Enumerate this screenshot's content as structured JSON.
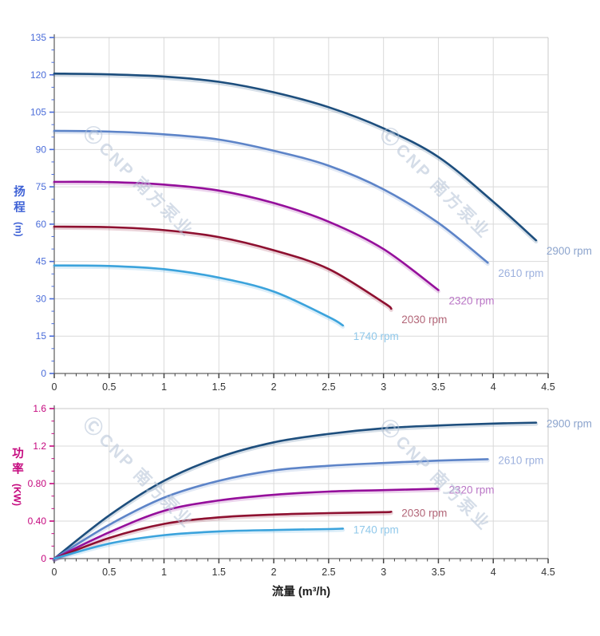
{
  "watermark": {
    "logo": "Ⓒ",
    "brand": "CNP 南方泵业"
  },
  "x_axis_title": "流量 (m³/h)",
  "colors": {
    "grid": "#dadada",
    "border": "#c9c9c9",
    "spine": "#666666",
    "x_tick": "#444444",
    "x_text": "#333333",
    "head_axis": "#4a6cd9",
    "power_axis": "#c5087e",
    "watermark": "#b3c2d6"
  },
  "chart_data": [
    {
      "type": "line",
      "title": "",
      "xlabel": "流量 (m³/h)",
      "ylabel": "扬程 (m)",
      "y_title": {
        "text": "扬程",
        "unit": "(m)"
      },
      "xlim": [
        0,
        4.5
      ],
      "ylim": [
        0,
        135
      ],
      "grid": true,
      "axis_color": "#4a6cd9",
      "x_ticks": {
        "values": [
          0,
          0.5,
          1,
          1.5,
          2,
          2.5,
          3,
          3.5,
          4,
          4.5
        ],
        "labels": [
          "0",
          "0.5",
          "1",
          "1.5",
          "2",
          "2.5",
          "3",
          "3.5",
          "4",
          "4.5"
        ],
        "minor_divisions": 5
      },
      "y_ticks": {
        "values": [
          0,
          15,
          30,
          45,
          60,
          75,
          90,
          105,
          120,
          135
        ],
        "labels": [
          "0",
          "15",
          "30",
          "45",
          "60",
          "75",
          "90",
          "105",
          "120",
          "135"
        ],
        "minor_divisions": 3
      },
      "series": [
        {
          "name": "2900 rpm",
          "color": "#1d4e7d",
          "label_color": "#8ca4cd",
          "x": [
            0,
            0.5,
            1,
            1.5,
            2,
            2.5,
            3,
            3.5,
            4,
            4.39
          ],
          "y": [
            120.5,
            120.2,
            119.3,
            117.2,
            113,
            107,
            98.5,
            87,
            69,
            53.5
          ]
        },
        {
          "name": "2610 rpm",
          "color": "#5d84c8",
          "label_color": "#9db1de",
          "x": [
            0,
            0.5,
            1,
            1.5,
            2,
            2.5,
            3,
            3.5,
            3.95
          ],
          "y": [
            97.5,
            97.2,
            96.1,
            94,
            89.5,
            83.5,
            74,
            60.5,
            44.5
          ]
        },
        {
          "name": "2320 rpm",
          "color": "#950f9b",
          "label_color": "#ba76c6",
          "x": [
            0,
            0.5,
            1,
            1.5,
            2,
            2.5,
            3,
            3.5
          ],
          "y": [
            77,
            76.9,
            75.9,
            73.5,
            68.5,
            61,
            50,
            33.5
          ]
        },
        {
          "name": "2030 rpm",
          "color": "#8e1030",
          "label_color": "#b26577",
          "x": [
            0,
            0.5,
            1,
            1.5,
            2,
            2.5,
            3,
            3.07
          ],
          "y": [
            59,
            58.8,
            57.6,
            54.8,
            49.5,
            42,
            28.5,
            26
          ]
        },
        {
          "name": "1740 rpm",
          "color": "#3ba3dc",
          "label_color": "#90c8ea",
          "x": [
            0,
            0.5,
            1,
            1.5,
            2,
            2.5,
            2.63
          ],
          "y": [
            43.4,
            43.2,
            41.9,
            38.5,
            32.9,
            22.7,
            19.3
          ]
        }
      ]
    },
    {
      "type": "line",
      "title": "",
      "xlabel": "流量 (m³/h)",
      "ylabel": "功率 (KW)",
      "y_title": {
        "text": "功率",
        "unit": "(KW)"
      },
      "xlim": [
        0,
        4.5
      ],
      "ylim": [
        0,
        1.6
      ],
      "grid": true,
      "axis_color": "#c5087e",
      "x_ticks": {
        "values": [
          0,
          0.5,
          1,
          1.5,
          2,
          2.5,
          3,
          3.5,
          4,
          4.5
        ],
        "labels": [
          "0",
          "0.5",
          "1",
          "1.5",
          "2",
          "2.5",
          "3",
          "3.5",
          "4",
          "4.5"
        ],
        "minor_divisions": 5
      },
      "y_ticks": {
        "values": [
          0,
          0.4,
          0.8,
          1.2,
          1.6
        ],
        "labels": [
          "0",
          "0.40",
          "0.80",
          "1.2",
          "1.6"
        ],
        "minor_divisions": 3
      },
      "series": [
        {
          "name": "2900 rpm",
          "color": "#1d4e7d",
          "label_color": "#8ca4cd",
          "x": [
            0,
            0.5,
            1,
            1.5,
            2,
            2.5,
            3,
            3.5,
            4,
            4.39
          ],
          "y": [
            0,
            0.46,
            0.83,
            1.08,
            1.24,
            1.33,
            1.39,
            1.42,
            1.44,
            1.45
          ]
        },
        {
          "name": "2610 rpm",
          "color": "#5d84c8",
          "label_color": "#9db1de",
          "x": [
            0,
            0.5,
            1,
            1.5,
            2,
            2.5,
            3,
            3.5,
            3.95
          ],
          "y": [
            0,
            0.36,
            0.65,
            0.83,
            0.94,
            0.99,
            1.02,
            1.045,
            1.06
          ]
        },
        {
          "name": "2320 rpm",
          "color": "#950f9b",
          "label_color": "#ba76c6",
          "x": [
            0,
            0.5,
            1,
            1.5,
            2,
            2.5,
            3,
            3.5
          ],
          "y": [
            0,
            0.28,
            0.51,
            0.62,
            0.68,
            0.715,
            0.73,
            0.745
          ]
        },
        {
          "name": "2030 rpm",
          "color": "#8e1030",
          "label_color": "#b26577",
          "x": [
            0,
            0.5,
            1,
            1.5,
            2,
            2.5,
            3,
            3.07
          ],
          "y": [
            0,
            0.22,
            0.37,
            0.44,
            0.47,
            0.485,
            0.495,
            0.5
          ]
        },
        {
          "name": "1740 rpm",
          "color": "#3ba3dc",
          "label_color": "#90c8ea",
          "x": [
            0,
            0.5,
            1,
            1.5,
            2,
            2.5,
            2.63
          ],
          "y": [
            0,
            0.16,
            0.25,
            0.29,
            0.305,
            0.315,
            0.32
          ]
        }
      ]
    }
  ]
}
